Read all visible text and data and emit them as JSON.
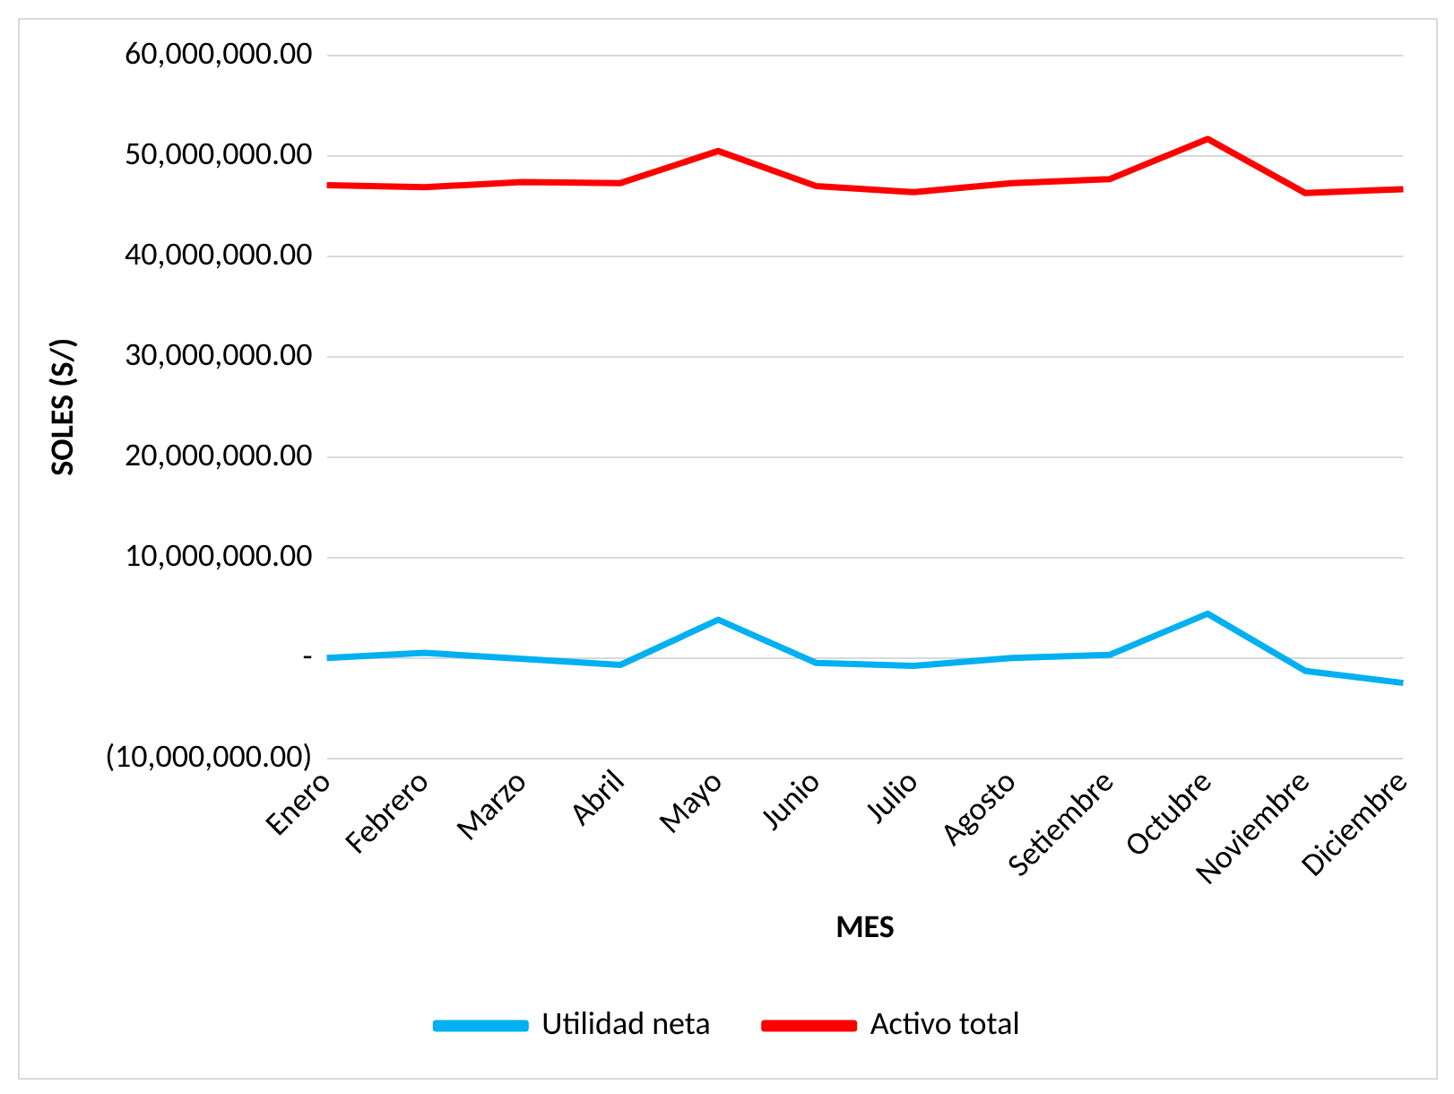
{
  "chart_data": {
    "type": "line",
    "xlabel": "MES",
    "ylabel": "SOLES (S/)",
    "categories": [
      "Enero",
      "Febrero",
      "Marzo",
      "Abril",
      "Mayo",
      "Junio",
      "Julio",
      "Agosto",
      "Setiembre",
      "Octubre",
      "Noviembre",
      "Diciembre"
    ],
    "series": [
      {
        "name": "Utilidad neta",
        "color": "#00b0f0",
        "values": [
          0,
          500000.0,
          -100000.0,
          -700000.0,
          3800000.0,
          -500000.0,
          -800000.0,
          0,
          300000.0,
          4400000.0,
          -1300000.0,
          -2500000.0
        ]
      },
      {
        "name": "Activo total",
        "color": "#ff0000",
        "values": [
          47100000.0,
          46900000.0,
          47400000.0,
          47300000.0,
          50500000.0,
          47000000.0,
          46400000.0,
          47300000.0,
          47700000.0,
          51700000.0,
          46300000.0,
          46700000.0
        ]
      }
    ],
    "ylim": [
      -10000000,
      60000000
    ],
    "yticks": [
      {
        "value": -10000000,
        "label": "(10,000,000.00)"
      },
      {
        "value": 0,
        "label": "-"
      },
      {
        "value": 10000000,
        "label": "10,000,000.00"
      },
      {
        "value": 20000000,
        "label": "20,000,000.00"
      },
      {
        "value": 30000000,
        "label": "30,000,000.00"
      },
      {
        "value": 40000000,
        "label": "40,000,000.00"
      },
      {
        "value": 50000000,
        "label": "50,000,000.00"
      },
      {
        "value": 60000000,
        "label": "60,000,000.00"
      }
    ],
    "grid": "y",
    "legend": "bottom",
    "marker": "none",
    "line_style": "solid"
  }
}
